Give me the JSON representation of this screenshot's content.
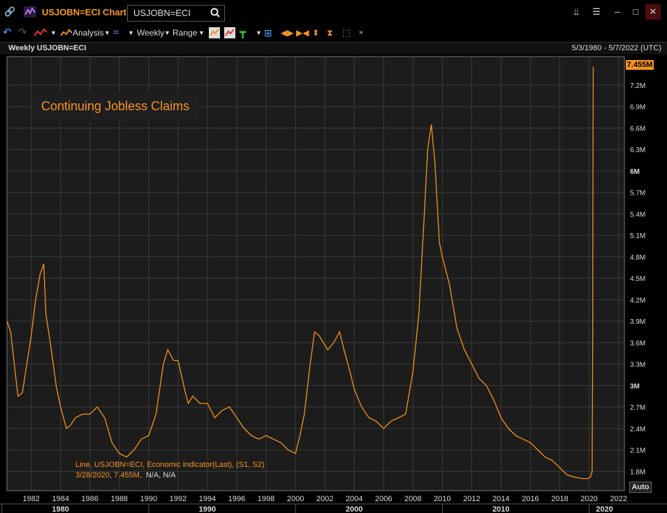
{
  "window": {
    "title": "USJOBN=ECI Chart",
    "search_value": "USJOBN=ECI"
  },
  "toolbar": {
    "analysis_label": "Analysis",
    "period_label": "Weekly",
    "range_label": "Range"
  },
  "chart_header": {
    "left": "Weekly USJOBN=ECI",
    "right": "5/3/1980 - 5/7/2022 (UTC)"
  },
  "chart_data": {
    "type": "line",
    "title": "Continuing Jobless Claims",
    "series": [
      {
        "x": [
          1980.35,
          1980.6,
          1980.9,
          1981.1,
          1981.4,
          1981.7,
          1982.0,
          1982.3,
          1982.6,
          1982.85,
          1983.0,
          1983.3,
          1983.7,
          1984.0,
          1984.4,
          1984.7,
          1985.0,
          1985.5,
          1986.0,
          1986.5,
          1987.0,
          1987.5,
          1988.0,
          1988.5,
          1989.0,
          1989.5,
          1990.0,
          1990.5,
          1991.0,
          1991.3,
          1991.7,
          1992.0,
          1992.5,
          1992.7,
          1993.0,
          1993.5,
          1994.0,
          1994.5,
          1995.0,
          1995.5,
          1996.0,
          1996.5,
          1997.0,
          1997.5,
          1998.0,
          1998.5,
          1999.0,
          1999.5,
          2000.0,
          2000.3,
          2000.6,
          2001.0,
          2001.3,
          2001.6,
          2001.9,
          2002.2,
          2002.6,
          2003.0,
          2003.3,
          2003.7,
          2004.0,
          2004.5,
          2005.0,
          2005.5,
          2006.0,
          2006.5,
          2007.0,
          2007.5,
          2008.0,
          2008.4,
          2008.8,
          2009.0,
          2009.25,
          2009.5,
          2009.8,
          2010.0,
          2010.5,
          2011.0,
          2011.5,
          2012.0,
          2012.5,
          2013.0,
          2013.5,
          2014.0,
          2014.5,
          2015.0,
          2015.5,
          2016.0,
          2016.5,
          2017.0,
          2017.5,
          2018.0,
          2018.5,
          2019.0,
          2019.5,
          2019.9,
          2020.1,
          2020.2,
          2020.24,
          2020.26,
          2020.28
        ],
        "y": [
          3.9,
          3.75,
          3.2,
          2.85,
          2.9,
          3.3,
          3.7,
          4.2,
          4.55,
          4.7,
          4.0,
          3.6,
          3.0,
          2.7,
          2.4,
          2.45,
          2.55,
          2.6,
          2.6,
          2.7,
          2.55,
          2.2,
          2.05,
          2.0,
          2.1,
          2.25,
          2.3,
          2.6,
          3.3,
          3.5,
          3.35,
          3.35,
          2.9,
          2.75,
          2.85,
          2.75,
          2.75,
          2.55,
          2.65,
          2.7,
          2.55,
          2.4,
          2.3,
          2.25,
          2.3,
          2.25,
          2.2,
          2.1,
          2.05,
          2.3,
          2.6,
          3.3,
          3.75,
          3.7,
          3.6,
          3.5,
          3.6,
          3.75,
          3.5,
          3.2,
          2.95,
          2.7,
          2.55,
          2.5,
          2.4,
          2.5,
          2.55,
          2.6,
          3.2,
          4.0,
          5.5,
          6.3,
          6.65,
          6.1,
          5.0,
          4.8,
          4.4,
          3.8,
          3.5,
          3.3,
          3.1,
          3.0,
          2.8,
          2.55,
          2.4,
          2.3,
          2.25,
          2.2,
          2.1,
          2.0,
          1.95,
          1.85,
          1.75,
          1.72,
          1.7,
          1.7,
          1.72,
          1.8,
          3.5,
          6.0,
          7.455
        ]
      }
    ],
    "legend_text": "Line, USJOBN=ECI, Economic Indicator(Last), (S1, S2)",
    "legend_value_date": "3/28/2020, 7.455M,",
    "legend_value_na": "N/A, N/A",
    "last_value_label": "7.455M",
    "auto_label": "Auto",
    "y_ticks": [
      {
        "v": 1.8,
        "label": "1.8M"
      },
      {
        "v": 2.1,
        "label": "2.1M"
      },
      {
        "v": 2.4,
        "label": "2.4M"
      },
      {
        "v": 2.7,
        "label": "2.7M"
      },
      {
        "v": 3.0,
        "label": "3M"
      },
      {
        "v": 3.3,
        "label": "3.3M"
      },
      {
        "v": 3.6,
        "label": "3.6M"
      },
      {
        "v": 3.9,
        "label": "3.9M"
      },
      {
        "v": 4.2,
        "label": "4.2M"
      },
      {
        "v": 4.5,
        "label": "4.5M"
      },
      {
        "v": 4.8,
        "label": "4.8M"
      },
      {
        "v": 5.1,
        "label": "5.1M"
      },
      {
        "v": 5.4,
        "label": "5.4M"
      },
      {
        "v": 5.7,
        "label": "5.7M"
      },
      {
        "v": 6.0,
        "label": "6M"
      },
      {
        "v": 6.3,
        "label": "6.3M"
      },
      {
        "v": 6.6,
        "label": "6.6M"
      },
      {
        "v": 6.9,
        "label": "6.9M"
      },
      {
        "v": 7.2,
        "label": "7.2M"
      }
    ],
    "x_ticks": [
      {
        "v": 1982,
        "label": "1982"
      },
      {
        "v": 1984,
        "label": "1984"
      },
      {
        "v": 1986,
        "label": "1986"
      },
      {
        "v": 1988,
        "label": "1988"
      },
      {
        "v": 1990,
        "label": "1990"
      },
      {
        "v": 1992,
        "label": "1992"
      },
      {
        "v": 1994,
        "label": "1994"
      },
      {
        "v": 1996,
        "label": "1996"
      },
      {
        "v": 1998,
        "label": "1998"
      },
      {
        "v": 2000,
        "label": "2000"
      },
      {
        "v": 2002,
        "label": "2002"
      },
      {
        "v": 2004,
        "label": "2004"
      },
      {
        "v": 2006,
        "label": "2006"
      },
      {
        "v": 2008,
        "label": "2008"
      },
      {
        "v": 2010,
        "label": "2010"
      },
      {
        "v": 2012,
        "label": "2012"
      },
      {
        "v": 2014,
        "label": "2014"
      },
      {
        "v": 2016,
        "label": "2016"
      },
      {
        "v": 2018,
        "label": "2018"
      },
      {
        "v": 2020,
        "label": "2020"
      },
      {
        "v": 2022,
        "label": "2022"
      }
    ],
    "decade_labels": [
      {
        "v": 1980,
        "label": "1980"
      },
      {
        "v": 1990,
        "label": "1990"
      },
      {
        "v": 2000,
        "label": "2000"
      },
      {
        "v": 2010,
        "label": "2010"
      },
      {
        "v": 2020,
        "label": "2020"
      }
    ],
    "xlim": [
      1980.35,
      2022.4
    ],
    "ylim": [
      1.53,
      7.6
    ],
    "grid": true,
    "colors": {
      "line": "#f7941d",
      "background": "#1c1c1c",
      "grid": "#3a3a3a",
      "last_value_bg": "#f7941d"
    }
  }
}
